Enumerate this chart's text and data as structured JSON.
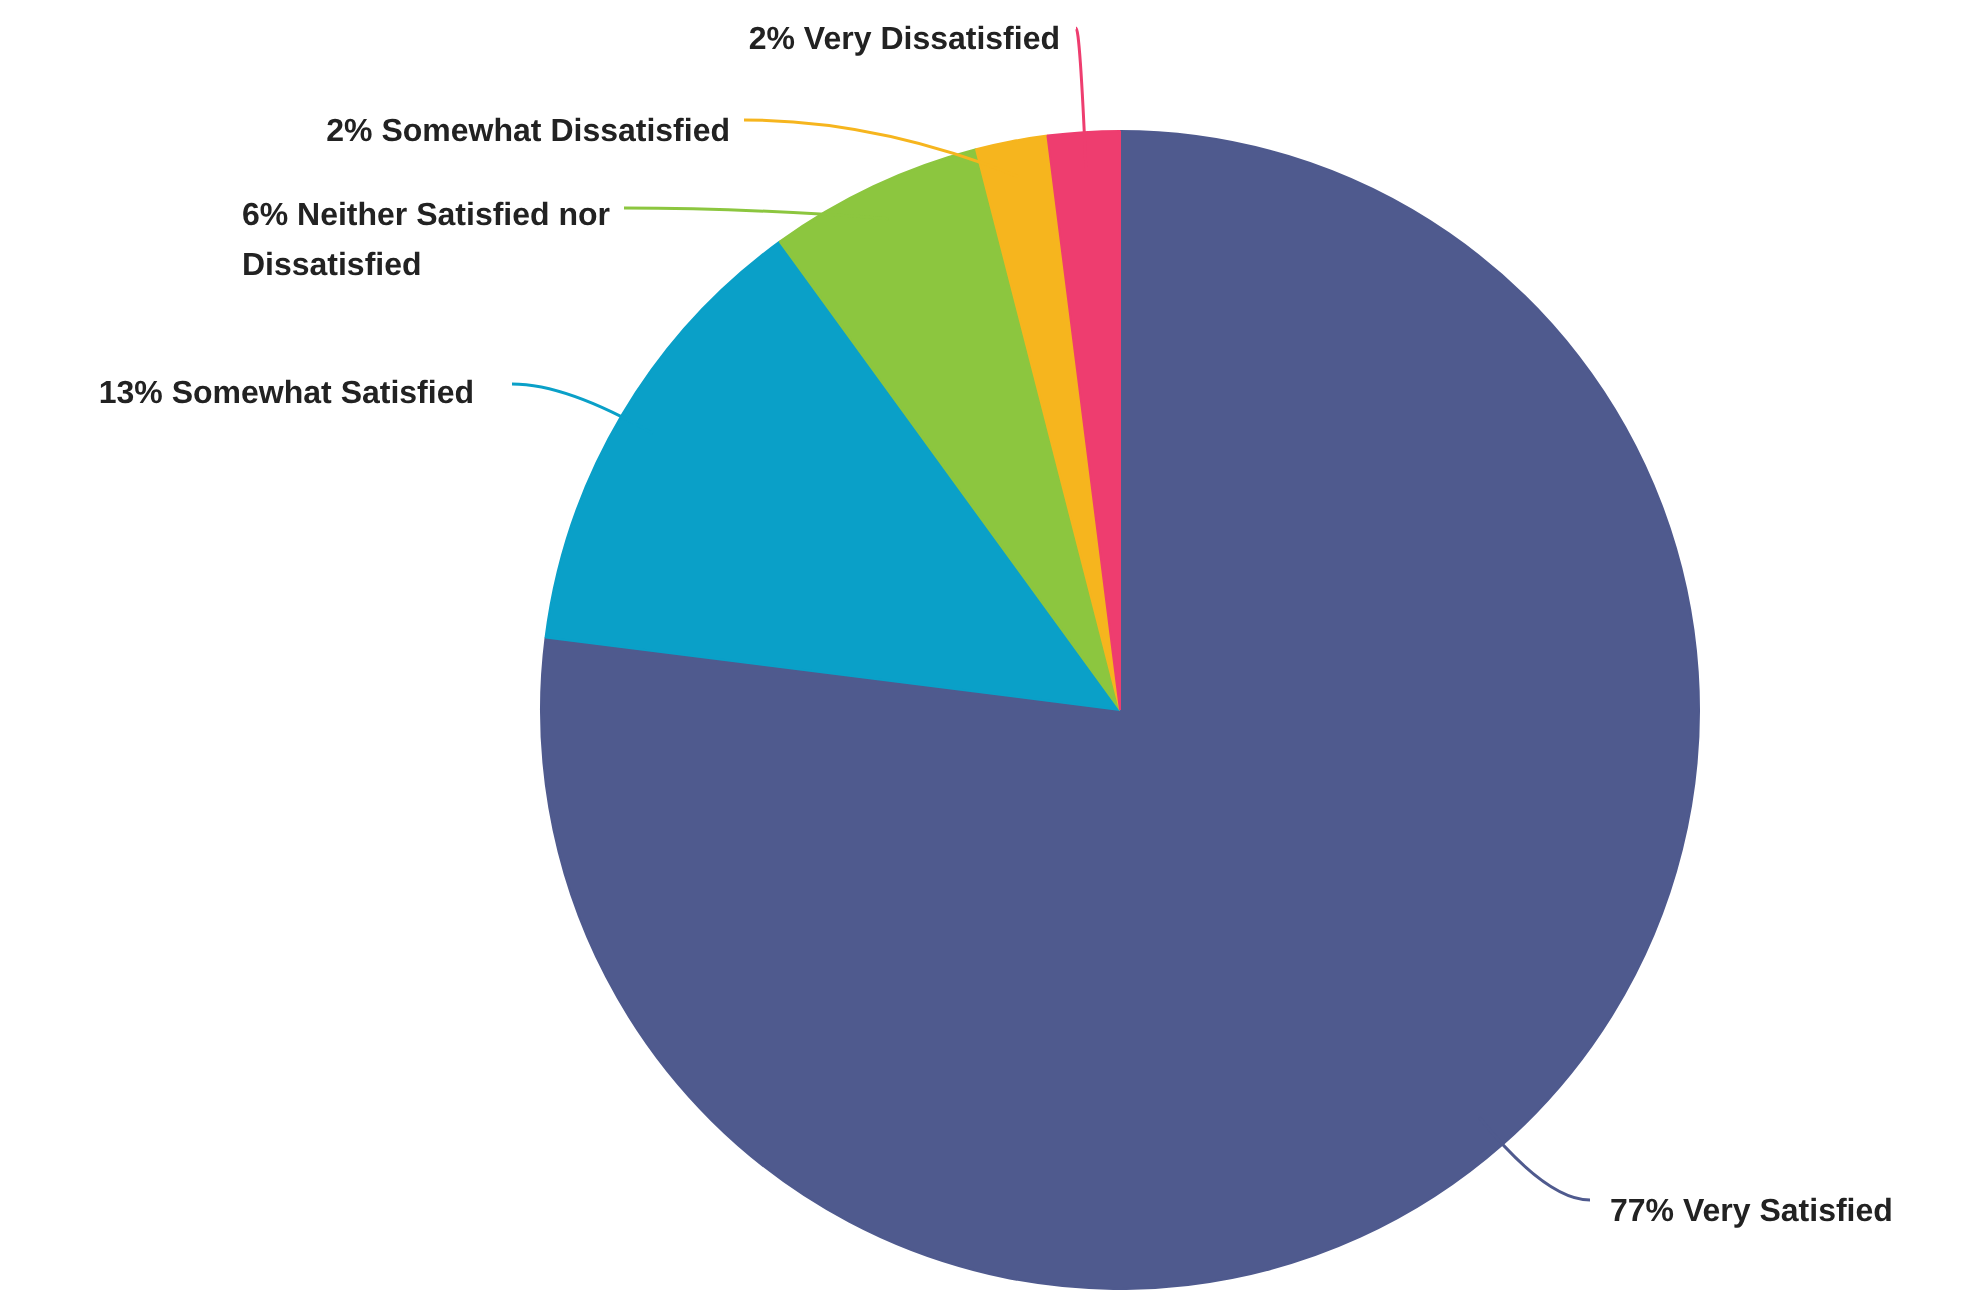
{
  "chart_data": {
    "type": "pie",
    "categories": [
      "Very Satisfied",
      "Somewhat Satisfied",
      "Neither Satisfied nor Dissatisfied",
      "Somewhat Dissatisfied",
      "Very Dissatisfied"
    ],
    "values": [
      77,
      13,
      6,
      2,
      2
    ],
    "value_labels": [
      "77%",
      "13%",
      "6%",
      "2%",
      "2%"
    ],
    "colors": [
      "#4f5a8e",
      "#0aa0c8",
      "#8cc63f",
      "#f6b51e",
      "#ee3d6f"
    ],
    "legend": false
  }
}
